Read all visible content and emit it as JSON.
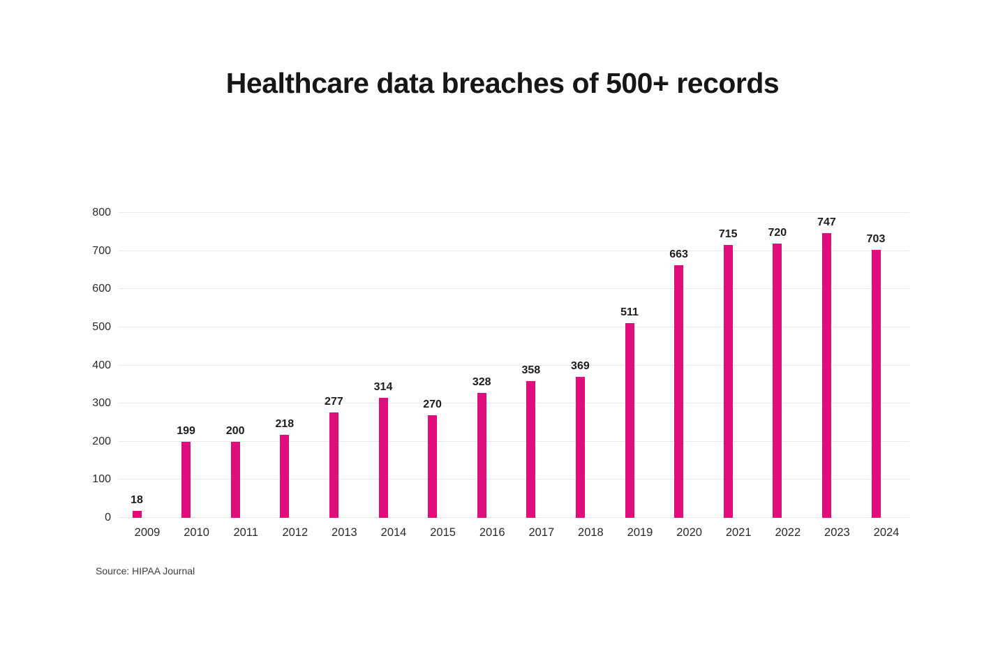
{
  "page": {
    "title": "Healthcare data breaches of 500+ records",
    "source": "Source: HIPAA Journal"
  },
  "colors": {
    "background": "#ffffff",
    "bar": "#e00d7c",
    "grid": "#e8e8e8",
    "title_text": "#161616",
    "value_label": "#1c1c1c",
    "axis_label": "#2a2a2a",
    "source_text": "#3c3c3c"
  },
  "chart_data": {
    "type": "bar",
    "title": "Healthcare data breaches of 500+ records",
    "categories": [
      "2009",
      "2010",
      "2011",
      "2012",
      "2013",
      "2014",
      "2015",
      "2016",
      "2017",
      "2018",
      "2019",
      "2020",
      "2021",
      "2022",
      "2023",
      "2024"
    ],
    "values": [
      18,
      199,
      200,
      218,
      277,
      314,
      270,
      328,
      358,
      369,
      511,
      663,
      715,
      720,
      747,
      703
    ],
    "xlabel": "",
    "ylabel": "",
    "ylim": [
      0,
      800
    ],
    "yticks": [
      0,
      100,
      200,
      300,
      400,
      500,
      600,
      700,
      800
    ],
    "grid": true,
    "legend": "none",
    "data_labels": true,
    "source": "Source: HIPAA Journal"
  }
}
